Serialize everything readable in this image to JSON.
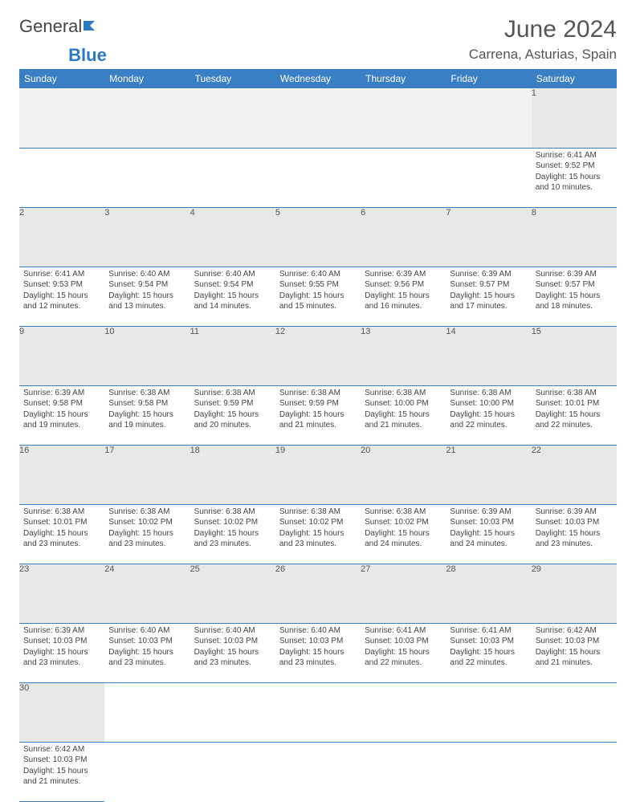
{
  "logo": {
    "part1": "General",
    "part2": "Blue"
  },
  "title": "June 2024",
  "location": "Carrena, Asturias, Spain",
  "colors": {
    "header_bg": "#3a7fc4",
    "daynum_bg": "#e8e8e8",
    "text": "#444",
    "logo_blue": "#2b78c5"
  },
  "days": [
    "Sunday",
    "Monday",
    "Tuesday",
    "Wednesday",
    "Thursday",
    "Friday",
    "Saturday"
  ],
  "weeks": [
    [
      null,
      null,
      null,
      null,
      null,
      null,
      {
        "n": "1",
        "sr": "Sunrise: 6:41 AM",
        "ss": "Sunset: 9:52 PM",
        "d1": "Daylight: 15 hours",
        "d2": "and 10 minutes."
      }
    ],
    [
      {
        "n": "2",
        "sr": "Sunrise: 6:41 AM",
        "ss": "Sunset: 9:53 PM",
        "d1": "Daylight: 15 hours",
        "d2": "and 12 minutes."
      },
      {
        "n": "3",
        "sr": "Sunrise: 6:40 AM",
        "ss": "Sunset: 9:54 PM",
        "d1": "Daylight: 15 hours",
        "d2": "and 13 minutes."
      },
      {
        "n": "4",
        "sr": "Sunrise: 6:40 AM",
        "ss": "Sunset: 9:54 PM",
        "d1": "Daylight: 15 hours",
        "d2": "and 14 minutes."
      },
      {
        "n": "5",
        "sr": "Sunrise: 6:40 AM",
        "ss": "Sunset: 9:55 PM",
        "d1": "Daylight: 15 hours",
        "d2": "and 15 minutes."
      },
      {
        "n": "6",
        "sr": "Sunrise: 6:39 AM",
        "ss": "Sunset: 9:56 PM",
        "d1": "Daylight: 15 hours",
        "d2": "and 16 minutes."
      },
      {
        "n": "7",
        "sr": "Sunrise: 6:39 AM",
        "ss": "Sunset: 9:57 PM",
        "d1": "Daylight: 15 hours",
        "d2": "and 17 minutes."
      },
      {
        "n": "8",
        "sr": "Sunrise: 6:39 AM",
        "ss": "Sunset: 9:57 PM",
        "d1": "Daylight: 15 hours",
        "d2": "and 18 minutes."
      }
    ],
    [
      {
        "n": "9",
        "sr": "Sunrise: 6:39 AM",
        "ss": "Sunset: 9:58 PM",
        "d1": "Daylight: 15 hours",
        "d2": "and 19 minutes."
      },
      {
        "n": "10",
        "sr": "Sunrise: 6:38 AM",
        "ss": "Sunset: 9:58 PM",
        "d1": "Daylight: 15 hours",
        "d2": "and 19 minutes."
      },
      {
        "n": "11",
        "sr": "Sunrise: 6:38 AM",
        "ss": "Sunset: 9:59 PM",
        "d1": "Daylight: 15 hours",
        "d2": "and 20 minutes."
      },
      {
        "n": "12",
        "sr": "Sunrise: 6:38 AM",
        "ss": "Sunset: 9:59 PM",
        "d1": "Daylight: 15 hours",
        "d2": "and 21 minutes."
      },
      {
        "n": "13",
        "sr": "Sunrise: 6:38 AM",
        "ss": "Sunset: 10:00 PM",
        "d1": "Daylight: 15 hours",
        "d2": "and 21 minutes."
      },
      {
        "n": "14",
        "sr": "Sunrise: 6:38 AM",
        "ss": "Sunset: 10:00 PM",
        "d1": "Daylight: 15 hours",
        "d2": "and 22 minutes."
      },
      {
        "n": "15",
        "sr": "Sunrise: 6:38 AM",
        "ss": "Sunset: 10:01 PM",
        "d1": "Daylight: 15 hours",
        "d2": "and 22 minutes."
      }
    ],
    [
      {
        "n": "16",
        "sr": "Sunrise: 6:38 AM",
        "ss": "Sunset: 10:01 PM",
        "d1": "Daylight: 15 hours",
        "d2": "and 23 minutes."
      },
      {
        "n": "17",
        "sr": "Sunrise: 6:38 AM",
        "ss": "Sunset: 10:02 PM",
        "d1": "Daylight: 15 hours",
        "d2": "and 23 minutes."
      },
      {
        "n": "18",
        "sr": "Sunrise: 6:38 AM",
        "ss": "Sunset: 10:02 PM",
        "d1": "Daylight: 15 hours",
        "d2": "and 23 minutes."
      },
      {
        "n": "19",
        "sr": "Sunrise: 6:38 AM",
        "ss": "Sunset: 10:02 PM",
        "d1": "Daylight: 15 hours",
        "d2": "and 23 minutes."
      },
      {
        "n": "20",
        "sr": "Sunrise: 6:38 AM",
        "ss": "Sunset: 10:02 PM",
        "d1": "Daylight: 15 hours",
        "d2": "and 24 minutes."
      },
      {
        "n": "21",
        "sr": "Sunrise: 6:39 AM",
        "ss": "Sunset: 10:03 PM",
        "d1": "Daylight: 15 hours",
        "d2": "and 24 minutes."
      },
      {
        "n": "22",
        "sr": "Sunrise: 6:39 AM",
        "ss": "Sunset: 10:03 PM",
        "d1": "Daylight: 15 hours",
        "d2": "and 23 minutes."
      }
    ],
    [
      {
        "n": "23",
        "sr": "Sunrise: 6:39 AM",
        "ss": "Sunset: 10:03 PM",
        "d1": "Daylight: 15 hours",
        "d2": "and 23 minutes."
      },
      {
        "n": "24",
        "sr": "Sunrise: 6:40 AM",
        "ss": "Sunset: 10:03 PM",
        "d1": "Daylight: 15 hours",
        "d2": "and 23 minutes."
      },
      {
        "n": "25",
        "sr": "Sunrise: 6:40 AM",
        "ss": "Sunset: 10:03 PM",
        "d1": "Daylight: 15 hours",
        "d2": "and 23 minutes."
      },
      {
        "n": "26",
        "sr": "Sunrise: 6:40 AM",
        "ss": "Sunset: 10:03 PM",
        "d1": "Daylight: 15 hours",
        "d2": "and 23 minutes."
      },
      {
        "n": "27",
        "sr": "Sunrise: 6:41 AM",
        "ss": "Sunset: 10:03 PM",
        "d1": "Daylight: 15 hours",
        "d2": "and 22 minutes."
      },
      {
        "n": "28",
        "sr": "Sunrise: 6:41 AM",
        "ss": "Sunset: 10:03 PM",
        "d1": "Daylight: 15 hours",
        "d2": "and 22 minutes."
      },
      {
        "n": "29",
        "sr": "Sunrise: 6:42 AM",
        "ss": "Sunset: 10:03 PM",
        "d1": "Daylight: 15 hours",
        "d2": "and 21 minutes."
      }
    ],
    [
      {
        "n": "30",
        "sr": "Sunrise: 6:42 AM",
        "ss": "Sunset: 10:03 PM",
        "d1": "Daylight: 15 hours",
        "d2": "and 21 minutes."
      },
      null,
      null,
      null,
      null,
      null,
      null
    ]
  ]
}
